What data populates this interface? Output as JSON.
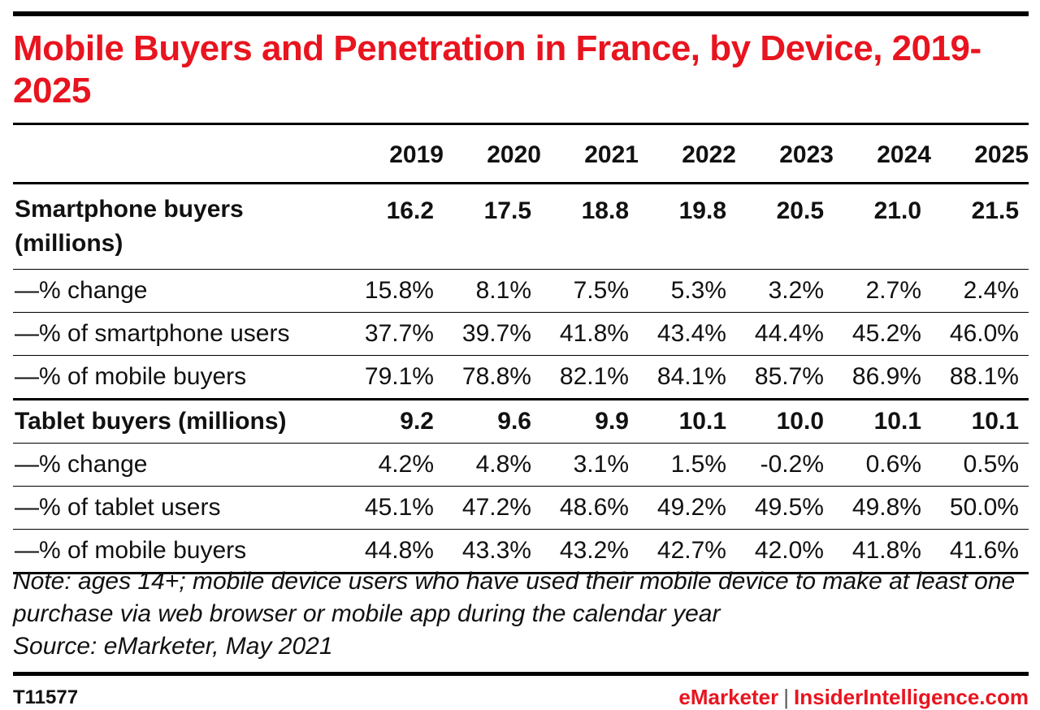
{
  "title": "Mobile Buyers and Penetration in France, by Device, 2019-2025",
  "note": "Note: ages 14+; mobile device users who have used their mobile device to make at least one purchase via web browser or mobile app during the calendar year",
  "source": "Source: eMarketer, May 2021",
  "chart_id": "T11577",
  "footer": {
    "brand_left": "eMarketer",
    "separator": "|",
    "brand_right": "InsiderIntelligence.com"
  },
  "colors": {
    "title": "#e8141f",
    "rules": "#000000"
  },
  "chart_data": {
    "type": "table",
    "columns": [
      "2019",
      "2020",
      "2021",
      "2022",
      "2023",
      "2024",
      "2025"
    ],
    "rows": [
      {
        "label": "Smartphone buyers (millions)",
        "values": [
          "16.2",
          "17.5",
          "18.8",
          "19.8",
          "20.5",
          "21.0",
          "21.5"
        ]
      },
      {
        "label": "—% change",
        "values": [
          "15.8%",
          "8.1%",
          "7.5%",
          "5.3%",
          "3.2%",
          "2.7%",
          "2.4%"
        ]
      },
      {
        "label": "—% of smartphone users",
        "values": [
          "37.7%",
          "39.7%",
          "41.8%",
          "43.4%",
          "44.4%",
          "45.2%",
          "46.0%"
        ]
      },
      {
        "label": "—% of mobile buyers",
        "values": [
          "79.1%",
          "78.8%",
          "82.1%",
          "84.1%",
          "85.7%",
          "86.9%",
          "88.1%"
        ]
      },
      {
        "label": "Tablet buyers (millions)",
        "values": [
          "9.2",
          "9.6",
          "9.9",
          "10.1",
          "10.0",
          "10.1",
          "10.1"
        ]
      },
      {
        "label": "—% change",
        "values": [
          "4.2%",
          "4.8%",
          "3.1%",
          "1.5%",
          "-0.2%",
          "0.6%",
          "0.5%"
        ]
      },
      {
        "label": "—% of tablet users",
        "values": [
          "45.1%",
          "47.2%",
          "48.6%",
          "49.2%",
          "49.5%",
          "49.8%",
          "50.0%"
        ]
      },
      {
        "label": "—% of mobile buyers",
        "values": [
          "44.8%",
          "43.3%",
          "43.2%",
          "42.7%",
          "42.0%",
          "41.8%",
          "41.6%"
        ]
      }
    ]
  }
}
